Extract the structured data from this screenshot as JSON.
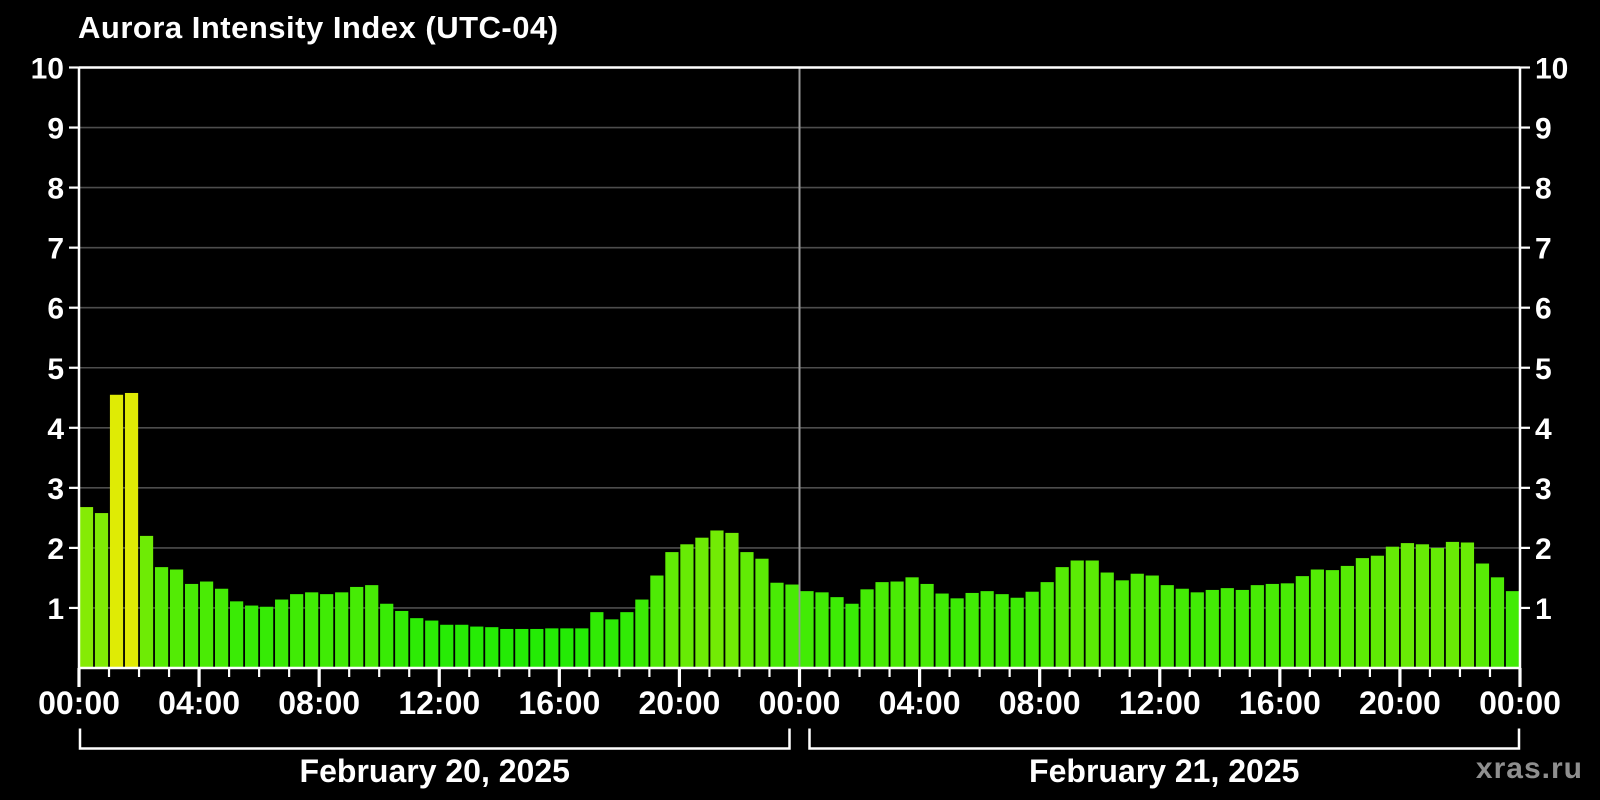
{
  "header": {
    "title": "Aurora Intensity Index (UTC-04)"
  },
  "watermark": "xras.ru",
  "chart_data": {
    "type": "bar",
    "title": "Aurora Intensity Index (UTC-04)",
    "bar_interval_minutes": 30,
    "ylim": [
      0,
      10
    ],
    "y_tick_labels": [
      "1",
      "2",
      "3",
      "4",
      "5",
      "6",
      "7",
      "8",
      "9",
      "10"
    ],
    "x_tick_labels": [
      "00:00",
      "04:00",
      "08:00",
      "12:00",
      "16:00",
      "20:00",
      "00:00",
      "04:00",
      "08:00",
      "12:00",
      "16:00",
      "20:00",
      "00:00"
    ],
    "grid": true,
    "legend": false,
    "colors": {
      "background": "#000000",
      "axis": "#ffffff",
      "grid": "#4d4d4d",
      "day_separator": "#999999",
      "bar_low_green": "#28f000",
      "bar_mid_green": "#66f000",
      "bar_high_yellow": "#e9ef06",
      "watermark": "#8f8f8f"
    },
    "color_rule": "bar hue = 120 - 12.5 * value (HSL green to yellow)",
    "days": [
      {
        "label": "February 20, 2025",
        "values": [
          2.68,
          2.58,
          4.55,
          4.58,
          2.2,
          1.68,
          1.64,
          1.4,
          1.44,
          1.32,
          1.11,
          1.04,
          1.02,
          1.14,
          1.23,
          1.26,
          1.23,
          1.26,
          1.35,
          1.38,
          1.07,
          0.95,
          0.83,
          0.79,
          0.72,
          0.72,
          0.69,
          0.68,
          0.65,
          0.65,
          0.65,
          0.66,
          0.66,
          0.66,
          0.93,
          0.81,
          0.93,
          1.14,
          1.54,
          1.93,
          2.06,
          2.17,
          2.29,
          2.25,
          1.93,
          1.82,
          1.42,
          1.39
        ]
      },
      {
        "label": "February 21, 2025",
        "values": [
          1.28,
          1.26,
          1.18,
          1.07,
          1.31,
          1.43,
          1.44,
          1.51,
          1.4,
          1.24,
          1.16,
          1.25,
          1.28,
          1.23,
          1.17,
          1.27,
          1.43,
          1.68,
          1.79,
          1.79,
          1.59,
          1.46,
          1.57,
          1.54,
          1.38,
          1.32,
          1.26,
          1.3,
          1.33,
          1.3,
          1.38,
          1.4,
          1.41,
          1.53,
          1.64,
          1.63,
          1.7,
          1.83,
          1.87,
          2.02,
          2.08,
          2.06,
          2.0,
          2.1,
          2.09,
          1.74,
          1.51,
          1.28
        ]
      }
    ]
  }
}
